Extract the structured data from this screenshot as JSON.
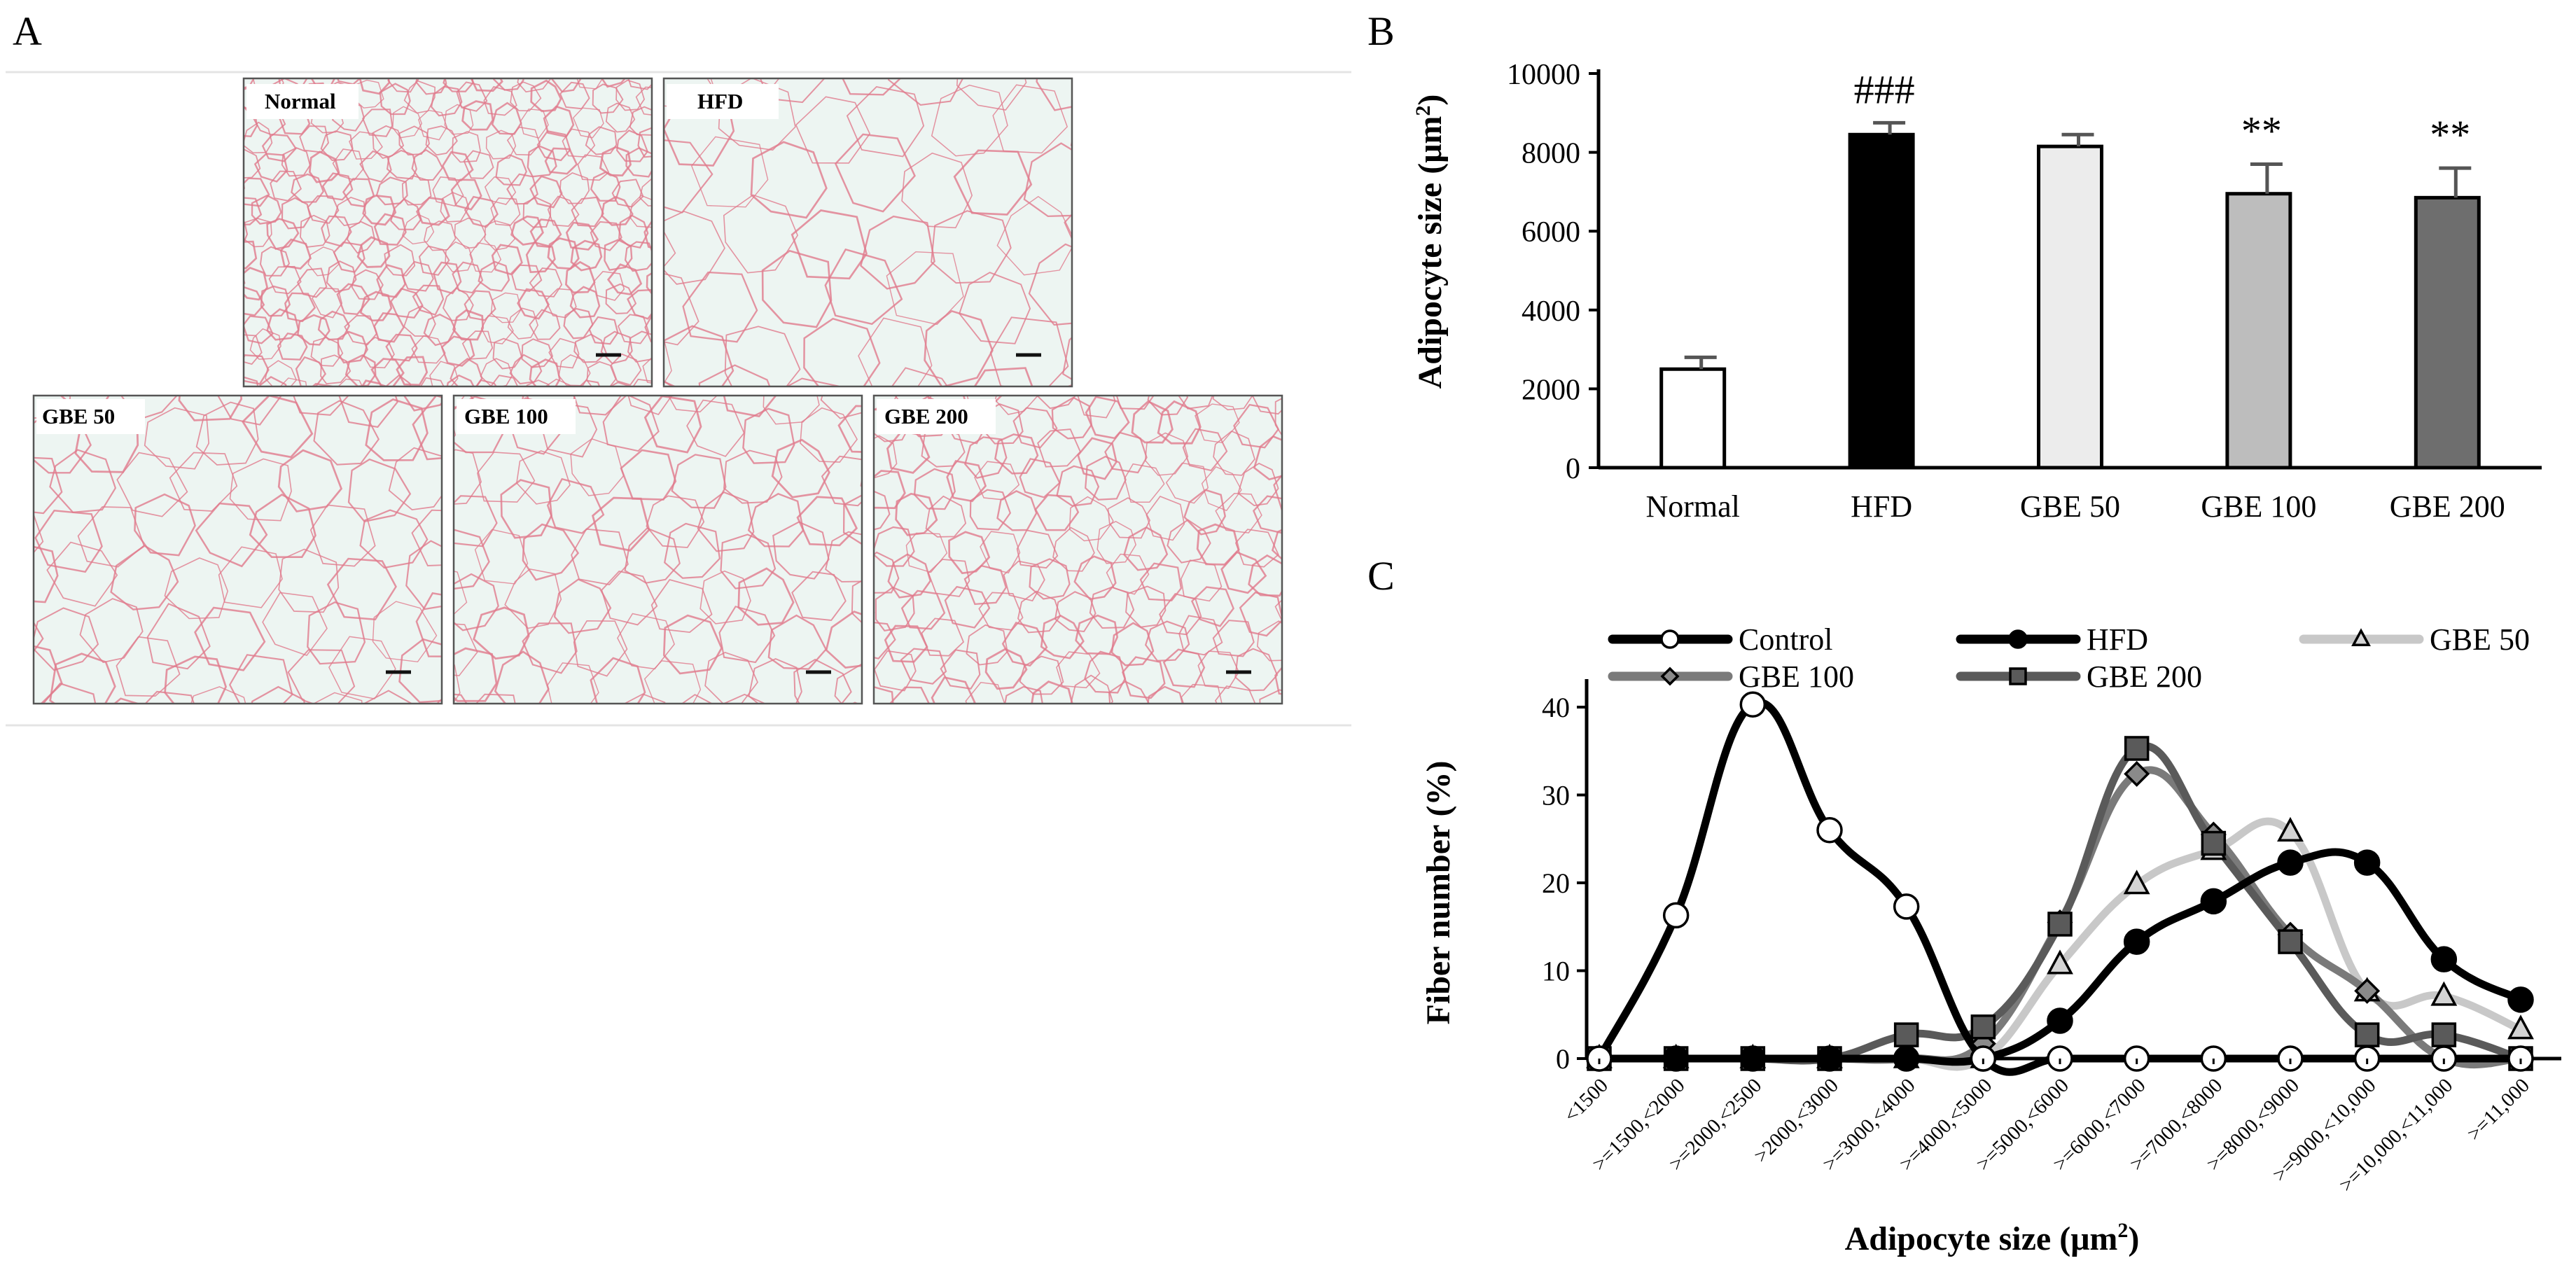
{
  "panel_letters": {
    "a": "A",
    "b": "B",
    "c": "C"
  },
  "colors": {
    "normal": "#ffffff",
    "hfd": "#000000",
    "gbe50": "#ececec",
    "gbe100": "#bdbdbd",
    "gbe200": "#6e6e6e",
    "tissue_bg": "#edf5f2",
    "membrane": "#e07a8c"
  },
  "histology": {
    "top_row": [
      {
        "label": "Normal"
      },
      {
        "label": "HFD"
      }
    ],
    "bottom_row": [
      {
        "label": "GBE 50"
      },
      {
        "label": "GBE 100"
      },
      {
        "label": "GBE 200"
      }
    ]
  },
  "chart_data": [
    {
      "id": "B",
      "type": "bar",
      "title": "",
      "xlabel": "",
      "ylabel_main": "Adipocyte size (μm",
      "ylabel_sup": "2",
      "ylabel_close": ")",
      "ylim": [
        0,
        10000
      ],
      "yticks": [
        0,
        2000,
        4000,
        6000,
        8000,
        10000
      ],
      "categories": [
        "Normal",
        "HFD",
        "GBE 50",
        "GBE 100",
        "GBE 200"
      ],
      "values": [
        2500,
        8450,
        8150,
        6950,
        6850
      ],
      "errors": [
        300,
        300,
        300,
        750,
        750
      ],
      "fills": [
        "#ffffff",
        "#000000",
        "#ececec",
        "#bdbdbd",
        "#6e6e6e"
      ],
      "annotations": [
        "",
        "###",
        "",
        "**",
        "**"
      ]
    },
    {
      "id": "C",
      "type": "line",
      "title": "",
      "xlabel_main": "Adipocyte size (μm",
      "xlabel_sup": "2",
      "xlabel_close": ")",
      "ylabel": "Fiber number (%)",
      "ylim": [
        0,
        40
      ],
      "yticks": [
        0,
        10,
        20,
        30,
        40
      ],
      "grid": false,
      "legend": "top",
      "categories": [
        "<1500",
        ">=1500,<2000",
        ">=2000,<2500",
        ">2000,<3000",
        ">=3000,<4000",
        ">=4000,<5000",
        ">=5000,<6000",
        ">=6000,<7000",
        ">=7000,<8000",
        ">=8000,<9000",
        ">=9000,<10,000",
        ">=10,000,<11,000",
        ">=11,000"
      ],
      "series": [
        {
          "name": "Control",
          "color": "#000000",
          "marker": "circle",
          "marker_fill": "#ffffff",
          "marker_stroke": "#000000",
          "values": [
            0,
            16.3,
            40.3,
            26,
            17.3,
            0,
            0,
            0,
            0,
            0,
            0,
            0,
            0
          ]
        },
        {
          "name": "HFD",
          "color": "#000000",
          "marker": "circle",
          "marker_fill": "#000000",
          "marker_stroke": "#000000",
          "values": [
            0,
            0,
            0,
            0,
            0,
            0,
            4.3,
            13.3,
            17.9,
            22.3,
            22.3,
            11.3,
            6.7
          ]
        },
        {
          "name": "GBE 50",
          "color": "#c8c8c8",
          "marker": "triangle",
          "marker_fill": "#d4d4d4",
          "marker_stroke": "#000000",
          "values": [
            0,
            0,
            0,
            0,
            0,
            0,
            10.7,
            19.8,
            23.7,
            25.8,
            7.6,
            7.1,
            3.3
          ]
        },
        {
          "name": "GBE 100",
          "color": "#7a7a7a",
          "marker": "diamond",
          "marker_fill": "#8a8a8a",
          "marker_stroke": "#000000",
          "values": [
            0,
            0,
            0,
            0,
            0,
            1.7,
            15.5,
            32.4,
            25.5,
            14.1,
            7.7,
            0,
            0
          ]
        },
        {
          "name": "GBE 200",
          "color": "#5a5a5a",
          "marker": "square",
          "marker_fill": "#5a5a5a",
          "marker_stroke": "#000000",
          "values": [
            0,
            0,
            0,
            0,
            2.7,
            3.6,
            15.3,
            35.3,
            24.5,
            13.3,
            2.7,
            2.7,
            0
          ]
        }
      ]
    }
  ]
}
